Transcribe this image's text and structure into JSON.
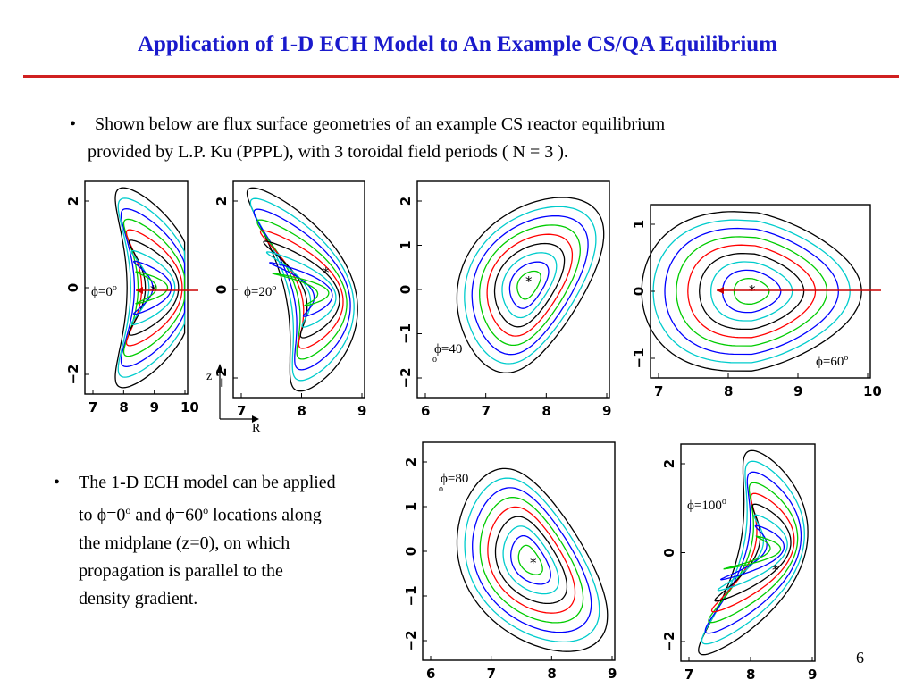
{
  "title": "Application of 1-D ECH Model to An Example CS/QA Equilibrium",
  "bullet_glyph": "•",
  "bullet1": {
    "line1": "Shown below are flux surface geometries of an example CS reactor equilibrium",
    "line2": "provided by L.P. Ku (PPPL), with 3 toroidal field periods ( N = 3 )."
  },
  "bullet2": {
    "line1": "The 1-D ECH model can be applied",
    "line2_a": "to ",
    "line2_phi1": "ϕ=0",
    "line2_sup1": "o",
    "line2_b": " and ",
    "line2_phi2": "ϕ=60",
    "line2_sup2": "o",
    "line2_c": " locations along",
    "line3": "the midplane (z=0), on which",
    "line4": "propagation is parallel to the",
    "line5": "density gradient."
  },
  "axis_indicator": {
    "z": "z",
    "r": "R"
  },
  "page_number": "6",
  "plots": [
    {
      "id": "p0",
      "label": "ϕ=0",
      "label_sup": "o",
      "label_o_below": "",
      "xticks": [
        "7",
        "8",
        "9",
        "10"
      ],
      "yticks": [
        "2",
        "0",
        "−2"
      ],
      "arrow": true
    },
    {
      "id": "p20",
      "label": "ϕ=20",
      "label_sup": "o",
      "label_o_below": "",
      "xticks": [
        "7",
        "8",
        "9"
      ],
      "yticks": [
        "2",
        "0",
        "−2"
      ],
      "arrow": false
    },
    {
      "id": "p40",
      "label": "ϕ=40",
      "label_sup": "",
      "label_o_below": "o",
      "xticks": [
        "6",
        "7",
        "8",
        "9"
      ],
      "yticks": [
        "2",
        "1",
        "0",
        "−1",
        "−2"
      ],
      "arrow": false
    },
    {
      "id": "p60",
      "label": "ϕ=60",
      "label_sup": "o",
      "label_o_below": "",
      "xticks": [
        "7",
        "8",
        "9",
        "10"
      ],
      "yticks": [
        "1",
        "0",
        "−1"
      ],
      "arrow": true
    },
    {
      "id": "p80",
      "label": "ϕ=80",
      "label_sup": "",
      "label_o_below": "o",
      "xticks": [
        "6",
        "7",
        "8",
        "9"
      ],
      "yticks": [
        "2",
        "1",
        "0",
        "−1",
        "−2"
      ],
      "arrow": false
    },
    {
      "id": "p100",
      "label": "ϕ=100",
      "label_sup": "o",
      "label_o_below": "",
      "xticks": [
        "7",
        "8",
        "9"
      ],
      "yticks": [
        "2",
        "0",
        "−2"
      ],
      "arrow": false
    }
  ],
  "contour_colors": [
    "#000000",
    "#00cccc",
    "#0000ff",
    "#00cc00",
    "#ff0000",
    "#000000",
    "#00cccc",
    "#0000ff",
    "#00cc00"
  ],
  "arrow_color": "#cc0000",
  "title_color": "#1a1acc",
  "rule_color": "#d02020",
  "magnetic_axis_marker": "*"
}
